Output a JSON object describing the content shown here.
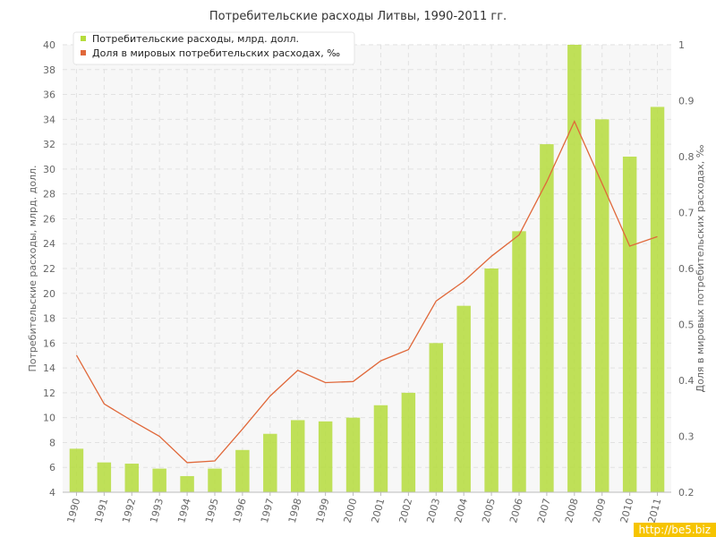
{
  "chart_data": {
    "type": "bar",
    "title": "Потребительские расходы Литвы, 1990-2011 гг.",
    "categories": [
      "1990",
      "1991",
      "1992",
      "1993",
      "1994",
      "1995",
      "1996",
      "1997",
      "1998",
      "1999",
      "2000",
      "2001",
      "2002",
      "2003",
      "2004",
      "2005",
      "2006",
      "2007",
      "2008",
      "2009",
      "2010",
      "2011"
    ],
    "series": [
      {
        "name": "Потребительские расходы, млрд. долл.",
        "type": "bar",
        "axis": "left",
        "color": "#b5dc3c",
        "values": [
          7.5,
          6.4,
          6.3,
          5.9,
          5.3,
          5.9,
          7.4,
          8.7,
          9.8,
          9.7,
          10.0,
          11.0,
          12.0,
          16.0,
          19.0,
          22.0,
          25.0,
          32.0,
          40.0,
          34.0,
          31.0,
          35.0
        ]
      },
      {
        "name": "Доля в мировых потребительских расходах, ‰",
        "type": "line",
        "axis": "right",
        "color": "#e0683a",
        "values": [
          0.445,
          0.358,
          0.328,
          0.3,
          0.253,
          0.256,
          0.313,
          0.372,
          0.418,
          0.396,
          0.398,
          0.435,
          0.455,
          0.542,
          0.577,
          0.622,
          0.66,
          0.755,
          0.863,
          0.752,
          0.64,
          0.657
        ]
      }
    ],
    "ylabel": "Потребительские расходы, млрд. долл.",
    "ylabel_right": "Доля в мировых потребительских расходах, ‰",
    "ylim": [
      4,
      40
    ],
    "yticks": [
      4,
      6,
      8,
      10,
      12,
      14,
      16,
      18,
      20,
      22,
      24,
      26,
      28,
      30,
      32,
      34,
      36,
      38,
      40
    ],
    "ylim_right": [
      0.2,
      1.0
    ],
    "yticks_right": [
      "0.2",
      "0.3",
      "0.4",
      "0.5",
      "0.6",
      "0.7",
      "0.8",
      "0.9",
      "1"
    ],
    "grid": true,
    "legend_position": "top-left"
  },
  "watermark": "http://be5.biz"
}
